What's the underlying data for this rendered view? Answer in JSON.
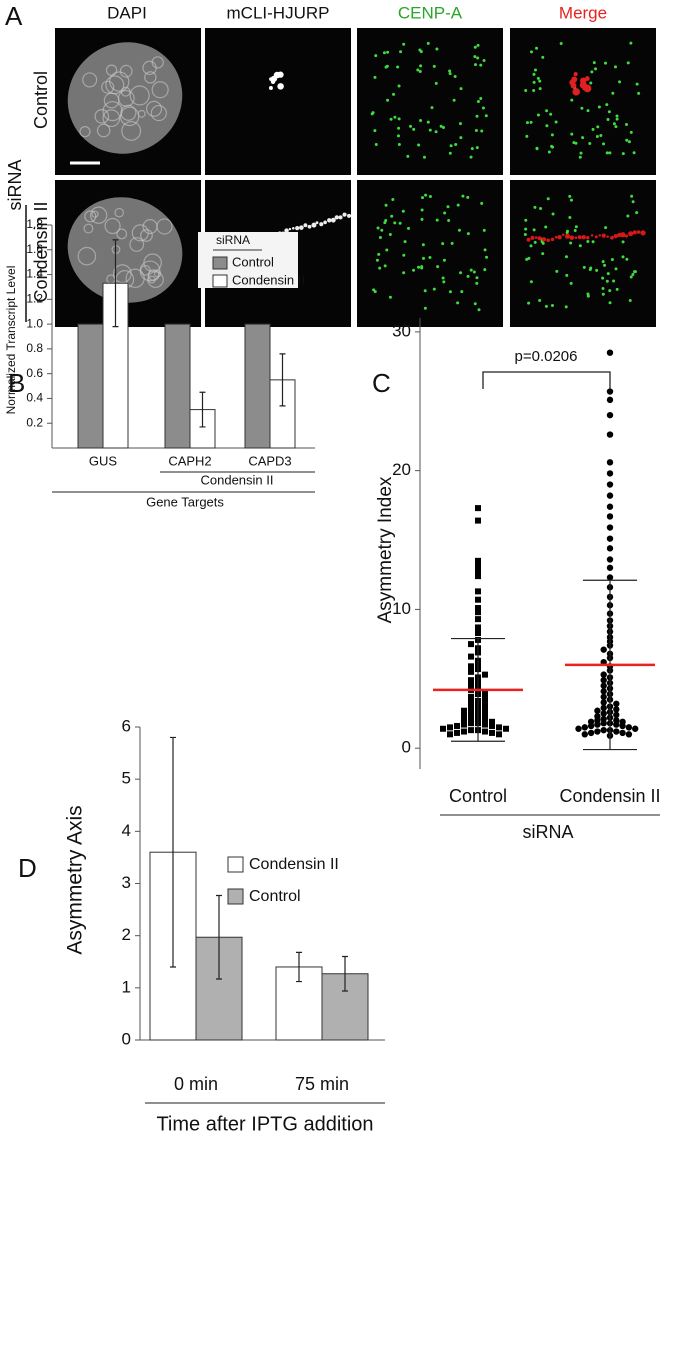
{
  "panel_a": {
    "label": "A",
    "columns": [
      "DAPI",
      "mCLI-HJURP",
      "CENP-A",
      "Merge"
    ],
    "rows": [
      "Control",
      "Condensin II"
    ],
    "group": "siRNA"
  },
  "chart_data": [
    {
      "type": "bar",
      "panel": "B",
      "categories": [
        "GUS",
        "CAPH2",
        "CAPD3"
      ],
      "series": [
        {
          "name": "Control",
          "color": "#8c8c8c",
          "values": [
            1,
            1,
            1
          ]
        },
        {
          "name": "Condensin II",
          "color": "#ffffff",
          "values": [
            1.33,
            0.31,
            0.55
          ],
          "errors": [
            0.35,
            0.14,
            0.21
          ]
        }
      ],
      "ylabel": "Normalized Transcript Level",
      "legend_title": "siRNA",
      "subgroup_label": "Condensin II",
      "xlabel": "Gene Targets",
      "ylim": [
        0,
        1.8
      ],
      "yticks": [
        0.2,
        0.4,
        0.6,
        0.8,
        {
          "value": 1,
          "label": "1.0"
        },
        1.2,
        1.4,
        1.6,
        1.8
      ],
      "legend": "upper right"
    },
    {
      "type": "scatter",
      "panel": "C",
      "categories": [
        "Control",
        "Condensin II"
      ],
      "markers": [
        "square",
        "circle"
      ],
      "marker_color": "#000000",
      "values": [
        [
          17.3,
          16.4,
          13.5,
          13.2,
          12.8,
          12.4,
          11.3,
          10.7,
          10.1,
          9.8,
          9.3,
          8.7,
          8.3,
          7.8,
          7.5,
          7.2,
          6.9,
          6.6,
          6.3,
          6.1,
          5.9,
          5.7,
          5.5,
          5.3,
          5.1,
          4.9,
          4.7,
          4.5,
          4.4,
          4.2,
          4.0,
          3.9,
          3.7,
          3.6,
          3.4,
          3.3,
          3.2,
          3.0,
          2.9,
          2.8,
          2.7,
          2.6,
          2.5,
          2.4,
          2.3,
          2.2,
          2.1,
          2.0,
          2.0,
          1.9,
          1.8,
          1.8,
          1.7,
          1.7,
          1.6,
          1.6,
          1.5,
          1.5,
          1.4,
          1.4,
          1.3,
          1.3,
          1.2,
          1.2,
          1.1,
          1.1,
          1.0,
          1.0
        ],
        [
          28.5,
          25.7,
          25.1,
          24.0,
          22.6,
          20.6,
          19.8,
          19.0,
          18.2,
          17.4,
          16.7,
          15.9,
          15.1,
          14.4,
          13.6,
          13.0,
          12.3,
          11.6,
          10.9,
          10.3,
          9.7,
          9.2,
          8.8,
          8.4,
          8.0,
          7.7,
          7.4,
          7.1,
          6.8,
          6.5,
          6.2,
          5.9,
          5.6,
          5.3,
          5.1,
          4.9,
          4.7,
          4.5,
          4.3,
          4.1,
          3.9,
          3.7,
          3.5,
          3.3,
          3.2,
          3.0,
          2.9,
          2.8,
          2.7,
          2.6,
          2.5,
          2.4,
          2.3,
          2.2,
          2.1,
          2.0,
          2.0,
          1.9,
          1.9,
          1.8,
          1.8,
          1.7,
          1.7,
          1.6,
          1.6,
          1.5,
          1.5,
          1.4,
          1.4,
          1.3,
          1.3,
          1.2,
          1.2,
          1.1,
          1.1,
          1.0,
          1.0,
          0.9
        ]
      ],
      "means": [
        4.2,
        6.0
      ],
      "mean_color": "#e8231f",
      "errors": [
        3.7,
        6.1
      ],
      "annotation": "p=0.0206",
      "xlabel": "siRNA",
      "ylabel": "Asymmetry Index",
      "ylim": [
        -1.5,
        31
      ],
      "yticks": [
        0,
        10,
        20,
        30
      ]
    },
    {
      "type": "bar",
      "panel": "D",
      "categories": [
        "0 min",
        "75 min"
      ],
      "series": [
        {
          "name": "Condensin II",
          "color": "#ffffff",
          "values": [
            3.6,
            1.4
          ],
          "errors": [
            2.2,
            0.28
          ]
        },
        {
          "name": "Control",
          "color": "#b0b0b0",
          "values": [
            1.97,
            1.27
          ],
          "errors": [
            0.8,
            0.33
          ]
        }
      ],
      "ylabel": "Asymmetry Axis",
      "xlabel": "Time after IPTG addition",
      "ylim": [
        0,
        6
      ],
      "yticks": [
        0,
        1,
        2,
        3,
        4,
        5,
        6
      ],
      "legend": "upper right"
    }
  ]
}
